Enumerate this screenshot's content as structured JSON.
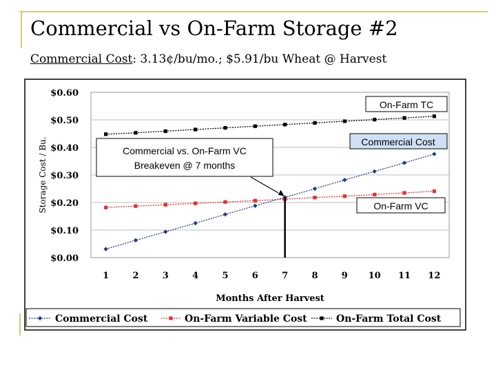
{
  "slide": {
    "title": "Commercial vs On-Farm Storage #2",
    "subtitle_label": "Commercial Cost",
    "subtitle_rest": ": 3.13¢/bu/mo.; $5.91/bu Wheat @ Harvest"
  },
  "chart_data": {
    "type": "line",
    "xlabel": "Months After Harvest",
    "ylabel": "Storage Cost / Bu.",
    "x": [
      1,
      2,
      3,
      4,
      5,
      6,
      7,
      8,
      9,
      10,
      11,
      12
    ],
    "yticks": [
      "$0.00",
      "$0.10",
      "$0.20",
      "$0.30",
      "$0.40",
      "$0.50",
      "$0.60"
    ],
    "ylim": [
      0,
      0.6
    ],
    "grid": "horizontal",
    "legend_position": "bottom",
    "series": [
      {
        "name": "Commercial Cost",
        "color": "#1f3b8a",
        "marker": "diamond",
        "values": [
          0.031,
          0.063,
          0.094,
          0.125,
          0.157,
          0.188,
          0.219,
          0.25,
          0.282,
          0.313,
          0.344,
          0.376
        ]
      },
      {
        "name": "On-Farm Variable Cost",
        "color": "#e03030",
        "marker": "square",
        "values": [
          0.182,
          0.187,
          0.192,
          0.197,
          0.202,
          0.207,
          0.212,
          0.218,
          0.223,
          0.229,
          0.235,
          0.241
        ]
      },
      {
        "name": "On-Farm Total Cost",
        "color": "#000000",
        "marker": "square",
        "values": [
          0.448,
          0.453,
          0.459,
          0.465,
          0.471,
          0.477,
          0.483,
          0.489,
          0.495,
          0.501,
          0.507,
          0.513
        ]
      }
    ],
    "annotations": {
      "breakeven_line1": "Commercial vs. On-Farm VC",
      "breakeven_line2": "Breakeven @ 7 months",
      "breakeven_month": 7,
      "onfarm_tc": "On-Farm TC",
      "commercial_cost": "Commercial Cost",
      "onfarm_vc": "On-Farm VC"
    }
  }
}
